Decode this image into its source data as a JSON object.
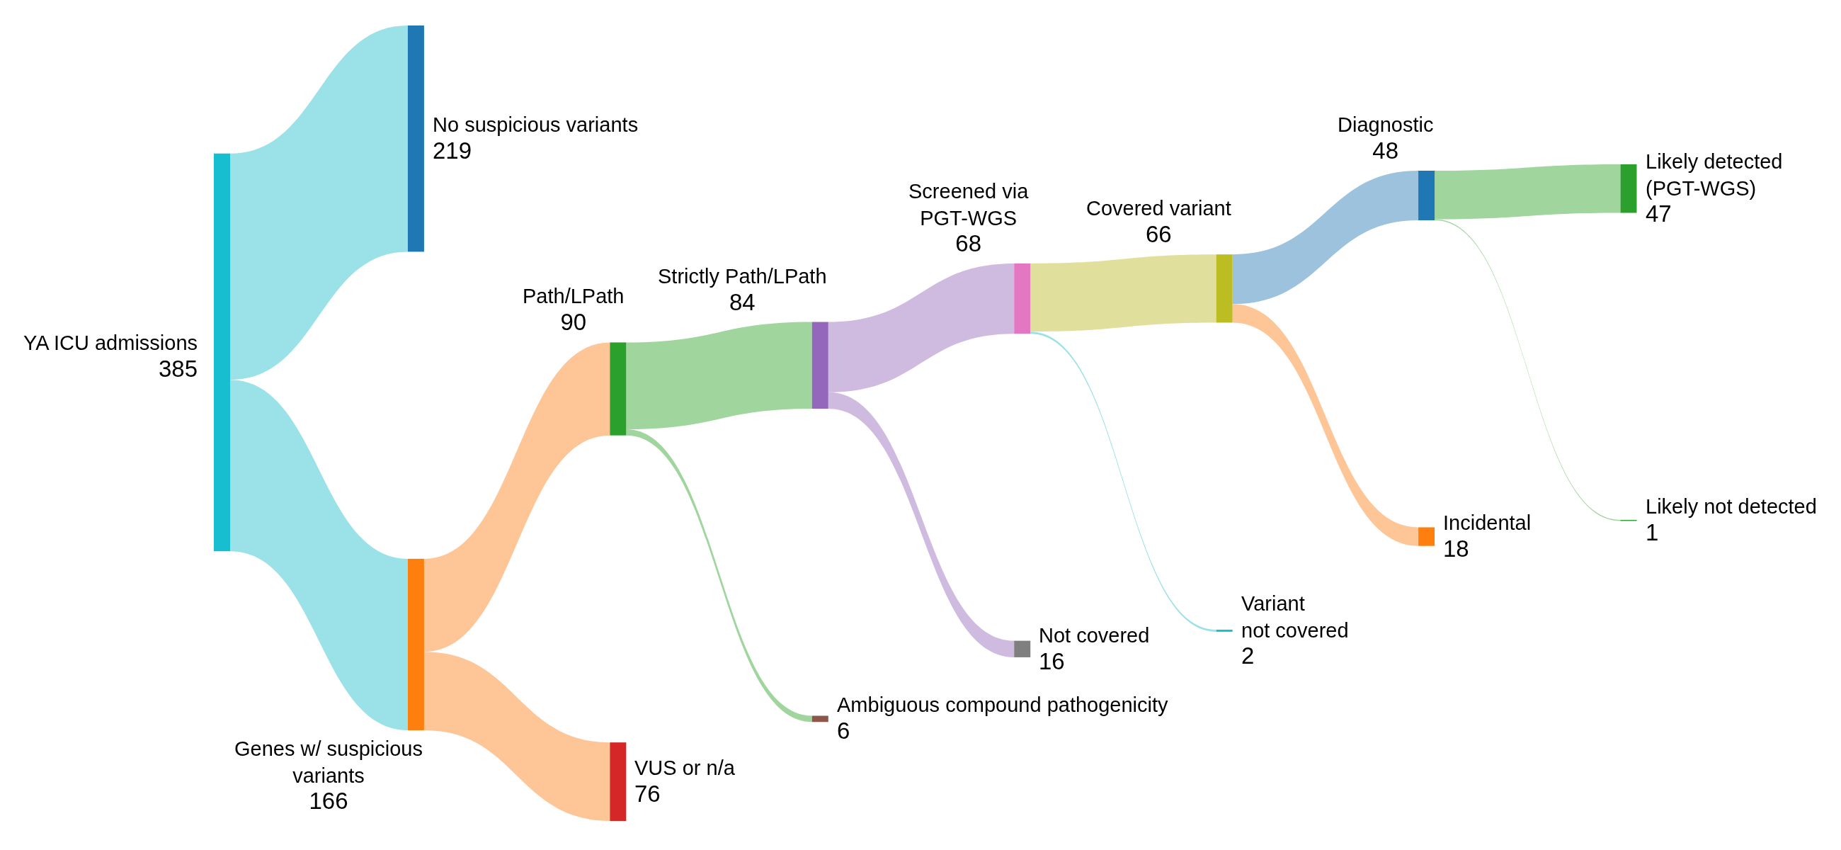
{
  "chart_data": {
    "type": "other",
    "categories": [
      "YA ICU admissions",
      "No suspicious variants",
      "Genes w/ suspicious\nvariants",
      "Path/LPath",
      "VUS or n/a",
      "Strictly Path/LPath",
      "Ambiguous compound pathogenicity",
      "Screened via\nPGT-WGS",
      "Not covered",
      "Covered variant",
      "Variant\nnot covered",
      "Diagnostic",
      "Incidental",
      "Likely detected\n(PGT-WGS)",
      "Likely not detected"
    ],
    "colors": [
      "#17becf",
      "#1f77b4",
      "#ff7f0e",
      "#2ca02c",
      "#d62728",
      "#9467bd",
      "#8c564b",
      "#e377c2",
      "#7f7f7f",
      "#bcbd22",
      "#17becf",
      "#1f77b4",
      "#ff7f0e",
      "#2ca02c",
      "#2ca02c"
    ],
    "series": [
      {
        "values": [
          385,
          null,
          null,
          null,
          null,
          null,
          null,
          null,
          null,
          null,
          null,
          null,
          null,
          null,
          null
        ]
      },
      {
        "values": [
          null,
          219,
          166,
          null,
          null,
          null,
          null,
          null,
          null,
          null,
          null,
          null,
          null,
          null,
          null
        ],
        "colors": [
          null,
          "#9ae2e8",
          "#9ae2e8",
          null,
          null,
          null,
          null,
          null,
          null,
          null,
          null,
          null,
          null,
          null,
          null
        ]
      },
      {
        "values": [
          null,
          null,
          null,
          90,
          76,
          null,
          null,
          null,
          null,
          null,
          null,
          null,
          null,
          null,
          null
        ],
        "colors": [
          null,
          null,
          null,
          "#fec597",
          "#fec597",
          null,
          null,
          null,
          null,
          null,
          null,
          null,
          null,
          null,
          null
        ]
      },
      {
        "values": [
          null,
          null,
          null,
          null,
          null,
          84,
          6,
          null,
          null,
          null,
          null,
          null,
          null,
          null,
          null
        ],
        "colors": [
          null,
          null,
          null,
          null,
          null,
          "#a0d59e",
          "#a0d59e",
          null,
          null,
          null,
          null,
          null,
          null,
          null,
          null
        ]
      },
      {
        "values": [
          null,
          null,
          null,
          null,
          null,
          null,
          null,
          68,
          16,
          null,
          null,
          null,
          null,
          null,
          null
        ],
        "colors": [
          null,
          null,
          null,
          null,
          null,
          null,
          null,
          "#d0bbe0",
          "#d0bbe0",
          null,
          null,
          null,
          null,
          null,
          null
        ]
      },
      {
        "values": [
          null,
          null,
          null,
          null,
          null,
          null,
          null,
          null,
          null,
          66,
          2,
          null,
          null,
          null,
          null
        ],
        "colors": [
          null,
          null,
          null,
          null,
          null,
          null,
          null,
          null,
          null,
          "#e0df9c",
          "#9ae2e8",
          null,
          null,
          null,
          null
        ]
      },
      {
        "values": [
          null,
          null,
          null,
          null,
          null,
          null,
          null,
          null,
          null,
          null,
          null,
          48,
          18,
          null,
          null
        ],
        "colors": [
          null,
          null,
          null,
          null,
          null,
          null,
          null,
          null,
          null,
          null,
          null,
          "#9cc2dd",
          "#fec597",
          null,
          null
        ]
      },
      {
        "values": [
          null,
          null,
          null,
          null,
          null,
          null,
          null,
          null,
          null,
          null,
          null,
          null,
          null,
          47,
          1
        ],
        "colors": [
          null,
          null,
          null,
          null,
          null,
          null,
          null,
          null,
          null,
          null,
          null,
          null,
          null,
          "#a0d59e",
          "#a0d59e"
        ]
      }
    ],
    "data_labels": true
  }
}
